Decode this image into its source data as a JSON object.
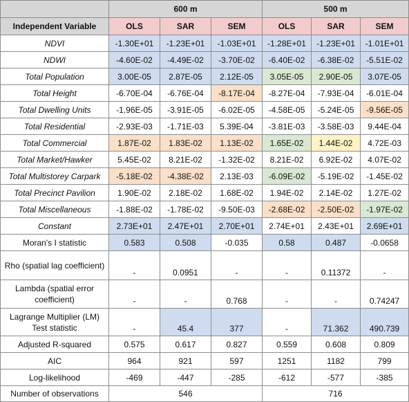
{
  "colors": {
    "header_gray": "#d6d6d6",
    "header_pink": "#f2cccc",
    "blue": "#cfdcef",
    "green": "#d9e8d3",
    "orange": "#fae0c8",
    "yellow": "#fff3c6",
    "white": "#ffffff"
  },
  "table": {
    "groups": [
      {
        "label": "600 m"
      },
      {
        "label": "500 m"
      }
    ],
    "header": {
      "label": "Independent Variable",
      "models": [
        "OLS",
        "SAR",
        "SEM",
        "OLS",
        "SAR",
        "SEM"
      ]
    },
    "variable_rows": [
      {
        "label": "NDVI",
        "cells": [
          {
            "v": "-1.30E+01",
            "c": "blue"
          },
          {
            "v": "-1.23E+01",
            "c": "blue"
          },
          {
            "v": "-1.03E+01",
            "c": "blue"
          },
          {
            "v": "-1.28E+01",
            "c": "blue"
          },
          {
            "v": "-1.23E+01",
            "c": "blue"
          },
          {
            "v": "-1.01E+01",
            "c": "blue"
          }
        ]
      },
      {
        "label": "NDWI",
        "cells": [
          {
            "v": "-4.60E-02",
            "c": "blue"
          },
          {
            "v": "-4.49E-02",
            "c": "blue"
          },
          {
            "v": "-3.70E-02",
            "c": "blue"
          },
          {
            "v": "-6.40E-02",
            "c": "blue"
          },
          {
            "v": "-6.38E-02",
            "c": "blue"
          },
          {
            "v": "-5.51E-02",
            "c": "blue"
          }
        ]
      },
      {
        "label": "Total Population",
        "cells": [
          {
            "v": "3.00E-05",
            "c": "blue"
          },
          {
            "v": "2.87E-05",
            "c": "blue"
          },
          {
            "v": "2.12E-05",
            "c": "blue"
          },
          {
            "v": "3.05E-05",
            "c": "green"
          },
          {
            "v": "2.90E-05",
            "c": "green"
          },
          {
            "v": "3.07E-05",
            "c": "blue"
          }
        ]
      },
      {
        "label": "Total Height",
        "cells": [
          {
            "v": "-6.70E-04",
            "c": "white"
          },
          {
            "v": "-6.76E-04",
            "c": "white"
          },
          {
            "v": "-8.17E-04",
            "c": "orange"
          },
          {
            "v": "-8.27E-04",
            "c": "white"
          },
          {
            "v": "-7.93E-04",
            "c": "white"
          },
          {
            "v": "-6.01E-04",
            "c": "white"
          }
        ]
      },
      {
        "label": "Total Dwelling Units",
        "cells": [
          {
            "v": "-1.96E-05",
            "c": "white"
          },
          {
            "v": "-3.91E-05",
            "c": "white"
          },
          {
            "v": "-6.02E-05",
            "c": "white"
          },
          {
            "v": "-4.58E-05",
            "c": "white"
          },
          {
            "v": "-5.24E-05",
            "c": "white"
          },
          {
            "v": "-9.56E-05",
            "c": "orange"
          }
        ]
      },
      {
        "label": "Total Residential",
        "cells": [
          {
            "v": "-2.93E-03",
            "c": "white"
          },
          {
            "v": "-1.71E-03",
            "c": "white"
          },
          {
            "v": "5.39E-04",
            "c": "white"
          },
          {
            "v": "-3.81E-03",
            "c": "white"
          },
          {
            "v": "-3.58E-03",
            "c": "white"
          },
          {
            "v": "9.44E-04",
            "c": "white"
          }
        ]
      },
      {
        "label": "Total Commercial",
        "cells": [
          {
            "v": "1.87E-02",
            "c": "orange"
          },
          {
            "v": "1.83E-02",
            "c": "orange"
          },
          {
            "v": "1.13E-02",
            "c": "orange"
          },
          {
            "v": "1.65E-02",
            "c": "green"
          },
          {
            "v": "1.44E-02",
            "c": "yellow"
          },
          {
            "v": "4.72E-03",
            "c": "white"
          }
        ]
      },
      {
        "label": "Total Market/Hawker",
        "cells": [
          {
            "v": "5.45E-02",
            "c": "white"
          },
          {
            "v": "8.21E-02",
            "c": "white"
          },
          {
            "v": "-1.32E-02",
            "c": "white"
          },
          {
            "v": "8.21E-02",
            "c": "white"
          },
          {
            "v": "6.92E-02",
            "c": "white"
          },
          {
            "v": "4.07E-02",
            "c": "white"
          }
        ]
      },
      {
        "label": "Total Multistorey Carpark",
        "cells": [
          {
            "v": "-5.18E-02",
            "c": "orange"
          },
          {
            "v": "-4.38E-02",
            "c": "orange"
          },
          {
            "v": "2.13E-03",
            "c": "white"
          },
          {
            "v": "-6.09E-02",
            "c": "green"
          },
          {
            "v": "-5.19E-02",
            "c": "white"
          },
          {
            "v": "-1.45E-02",
            "c": "white"
          }
        ]
      },
      {
        "label": "Total Precinct Pavilion",
        "cells": [
          {
            "v": "1.90E-02",
            "c": "white"
          },
          {
            "v": "2.18E-02",
            "c": "white"
          },
          {
            "v": "1.68E-02",
            "c": "white"
          },
          {
            "v": "1.94E-02",
            "c": "white"
          },
          {
            "v": "2.14E-02",
            "c": "white"
          },
          {
            "v": "1.27E-02",
            "c": "white"
          }
        ]
      },
      {
        "label": "Total Miscellaneous",
        "cells": [
          {
            "v": "-1.88E-02",
            "c": "white"
          },
          {
            "v": "-1.78E-02",
            "c": "white"
          },
          {
            "v": "-9.50E-03",
            "c": "white"
          },
          {
            "v": "-2.68E-02",
            "c": "orange"
          },
          {
            "v": "-2.50E-02",
            "c": "orange"
          },
          {
            "v": "-1.97E-02",
            "c": "green"
          }
        ]
      },
      {
        "label": "Constant",
        "cells": [
          {
            "v": "2.73E+01",
            "c": "blue"
          },
          {
            "v": "2.47E+01",
            "c": "blue"
          },
          {
            "v": "2.70E+01",
            "c": "blue"
          },
          {
            "v": "2.74E+01",
            "c": "white"
          },
          {
            "v": "2.43E+01",
            "c": "white"
          },
          {
            "v": "2.69E+01",
            "c": "blue"
          }
        ]
      }
    ],
    "stat_rows": [
      {
        "label": "Moran's I statistic",
        "cells": [
          {
            "v": "0.583",
            "c": "blue"
          },
          {
            "v": "0.508",
            "c": "blue"
          },
          {
            "v": "-0.035",
            "c": "white"
          },
          {
            "v": "0.58",
            "c": "blue"
          },
          {
            "v": "0.487",
            "c": "blue"
          },
          {
            "v": "-0.0658",
            "c": "white"
          }
        ]
      },
      {
        "label": "Rho (spatial lag coefficient)",
        "cells": [
          {
            "v": "-",
            "c": "white"
          },
          {
            "v": "0.0951",
            "c": "white"
          },
          {
            "v": "-",
            "c": "white"
          },
          {
            "v": "-",
            "c": "white"
          },
          {
            "v": "0.11372",
            "c": "white"
          },
          {
            "v": "-",
            "c": "white"
          }
        ]
      },
      {
        "label": "Lambda (spatial error coefficient)",
        "cells": [
          {
            "v": "-",
            "c": "white"
          },
          {
            "v": "-",
            "c": "white"
          },
          {
            "v": "0.768",
            "c": "white"
          },
          {
            "v": "-",
            "c": "white"
          },
          {
            "v": "-",
            "c": "white"
          },
          {
            "v": "0.74247",
            "c": "white"
          }
        ]
      },
      {
        "label": "Lagrange Multiplier (LM) Test statistic",
        "cells": [
          {
            "v": "-",
            "c": "white"
          },
          {
            "v": "45.4",
            "c": "blue"
          },
          {
            "v": "377",
            "c": "blue"
          },
          {
            "v": "-",
            "c": "white"
          },
          {
            "v": "71.362",
            "c": "blue"
          },
          {
            "v": "490.739",
            "c": "blue"
          }
        ]
      },
      {
        "label": "Adjusted R-squared",
        "cells": [
          {
            "v": "0.575",
            "c": "white"
          },
          {
            "v": "0.617",
            "c": "white"
          },
          {
            "v": "0.827",
            "c": "white"
          },
          {
            "v": "0.559",
            "c": "white"
          },
          {
            "v": "0.608",
            "c": "white"
          },
          {
            "v": "0.809",
            "c": "white"
          }
        ]
      },
      {
        "label": "AIC",
        "cells": [
          {
            "v": "964",
            "c": "white"
          },
          {
            "v": "921",
            "c": "white"
          },
          {
            "v": "597",
            "c": "white"
          },
          {
            "v": "1251",
            "c": "white"
          },
          {
            "v": "1182",
            "c": "white"
          },
          {
            "v": "799",
            "c": "white"
          }
        ]
      },
      {
        "label": "Log-likelihood",
        "cells": [
          {
            "v": "-469",
            "c": "white"
          },
          {
            "v": "-447",
            "c": "white"
          },
          {
            "v": "-285",
            "c": "white"
          },
          {
            "v": "-612",
            "c": "white"
          },
          {
            "v": "-577",
            "c": "white"
          },
          {
            "v": "-385",
            "c": "white"
          }
        ]
      }
    ],
    "observations": {
      "label": "Number of observations",
      "values": [
        "546",
        "716"
      ]
    }
  }
}
